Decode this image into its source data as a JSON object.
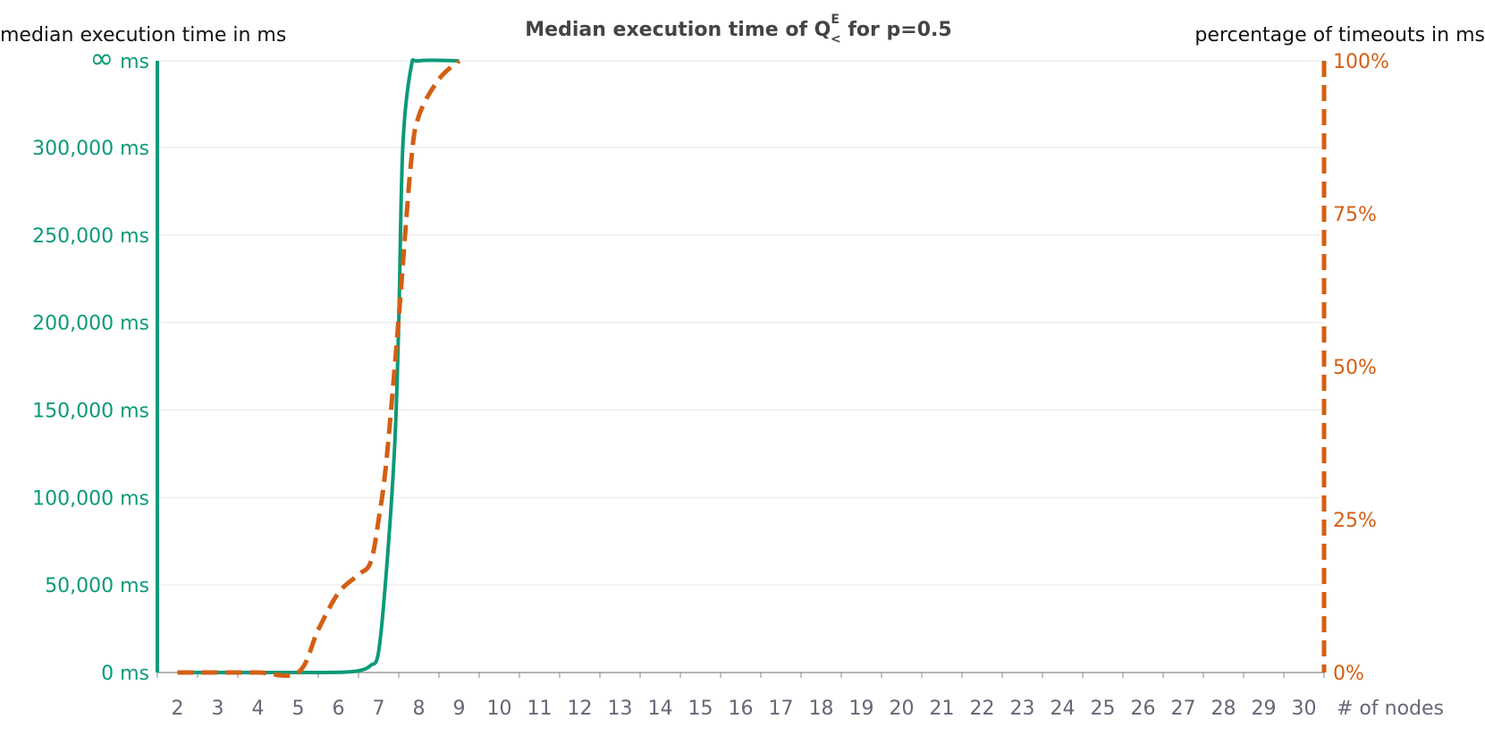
{
  "colors": {
    "time_series": "#0a9a78",
    "timeout_series": "#d35f14",
    "grid": "#e6e6e6",
    "tick_text": "#666677",
    "title": "#444444"
  },
  "chart_data": {
    "type": "line",
    "title_prefix": "Median execution time of Q",
    "title_superscript": "E",
    "title_subscript": "<",
    "title_suffix": " for p=0.5",
    "left_axis_title": "median execution time in ms",
    "right_axis_title": "percentage of timeouts in ms",
    "xlabel": "# of nodes",
    "x_ticks": [
      2,
      3,
      4,
      5,
      6,
      7,
      8,
      9,
      10,
      11,
      12,
      13,
      14,
      15,
      16,
      17,
      18,
      19,
      20,
      21,
      22,
      23,
      24,
      25,
      26,
      27,
      28,
      29,
      30
    ],
    "xlim": [
      1.5,
      30.5
    ],
    "ylim_left": [
      0,
      350000
    ],
    "ylim_right": [
      0,
      100
    ],
    "y_ticks_left": [
      {
        "value": 0,
        "label": "0 ms"
      },
      {
        "value": 50000,
        "label": "50,000 ms"
      },
      {
        "value": 100000,
        "label": "100,000 ms"
      },
      {
        "value": 150000,
        "label": "150,000 ms"
      },
      {
        "value": 200000,
        "label": "200,000 ms"
      },
      {
        "value": 250000,
        "label": "250,000 ms"
      },
      {
        "value": 300000,
        "label": "300,000 ms"
      }
    ],
    "infinity_label": "∞",
    "infinity_unit": "ms",
    "y_ticks_right": [
      {
        "value": 0,
        "label": "0%"
      },
      {
        "value": 25,
        "label": "25%"
      },
      {
        "value": 50,
        "label": "50%"
      },
      {
        "value": 75,
        "label": "75%"
      },
      {
        "value": 100,
        "label": "100%"
      }
    ],
    "grid": true,
    "series": [
      {
        "axis": "left",
        "style": "solid",
        "x": [
          2,
          3,
          4,
          5,
          6,
          6.5,
          6.8,
          7,
          7.2,
          7.4,
          7.5,
          7.6,
          7.8,
          8,
          9
        ],
        "y": [
          0,
          0,
          0,
          0,
          100,
          1000,
          4000,
          12000,
          60000,
          130000,
          200000,
          300000,
          345000,
          "inf",
          "inf"
        ]
      },
      {
        "axis": "right",
        "style": "dashed",
        "x": [
          2,
          3,
          4,
          5,
          5.5,
          6,
          6.5,
          6.8,
          7,
          7.2,
          7.5,
          7.8,
          8,
          8.5,
          9
        ],
        "y": [
          0,
          0,
          0,
          0,
          7,
          13,
          16,
          18,
          25,
          35,
          58,
          83,
          91,
          97,
          100
        ]
      }
    ]
  }
}
